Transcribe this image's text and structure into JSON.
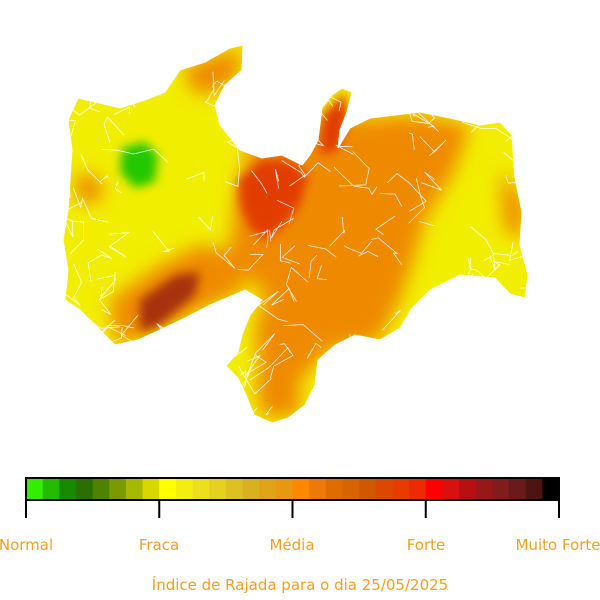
{
  "legend": {
    "labels": [
      "Normal",
      "Fraca",
      "Média",
      "Forte",
      "Muito Forte"
    ],
    "colors": [
      "#33ee00",
      "#22bb00",
      "#168a00",
      "#2a7000",
      "#4f8200",
      "#7a9a00",
      "#a8b800",
      "#d8d800",
      "#ffff00",
      "#f4ee10",
      "#ecdf20",
      "#e6d020",
      "#dec020",
      "#d8b020",
      "#e0a418",
      "#e89810",
      "#ff8800",
      "#f07808",
      "#e06c00",
      "#d86400",
      "#d05800",
      "#dc4800",
      "#e63c00",
      "#ee2a00",
      "#ff0000",
      "#d81010",
      "#b81010",
      "#981818",
      "#801c1c",
      "#6a1a1a",
      "#4e1414",
      "#000000"
    ]
  },
  "caption": "Índice de Rajada para o dia 25/05/2025",
  "map": {
    "region_colors": {
      "yellow": "#f2ee00",
      "orange": "#ef8a00",
      "red": "#e23c00",
      "darkred": "#a8320e",
      "green": "#22c800",
      "borders": "#ffffff"
    }
  }
}
